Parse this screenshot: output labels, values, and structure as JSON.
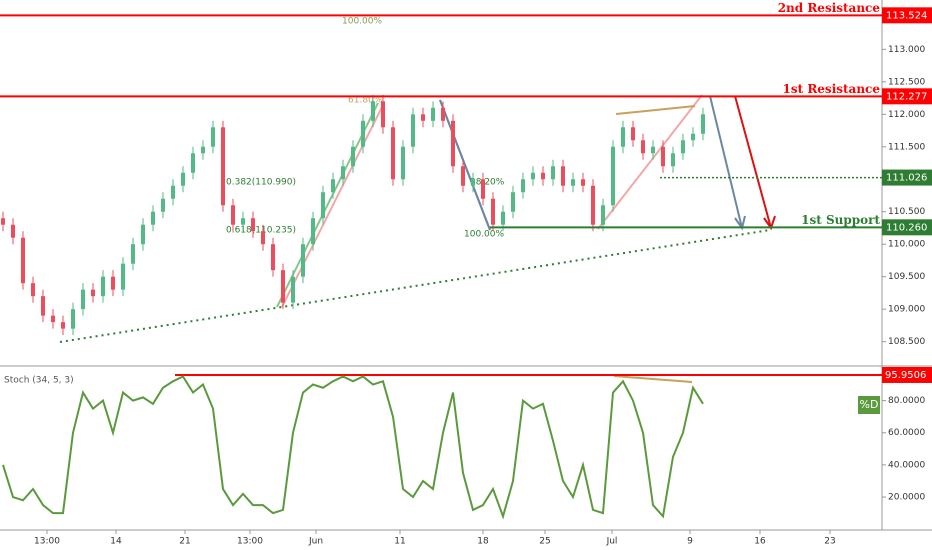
{
  "chart_data": {
    "type": "candlestick",
    "x": [
      0,
      1,
      2,
      3,
      4,
      5,
      6,
      7,
      8,
      9,
      10,
      11,
      12,
      13,
      14,
      15,
      16,
      17,
      18,
      19,
      20,
      21,
      22,
      23,
      24,
      25,
      26,
      27,
      28,
      29,
      30,
      31,
      32,
      33,
      34,
      35,
      36,
      37,
      38,
      39,
      40,
      41,
      42,
      43,
      44,
      45,
      46,
      47,
      48,
      49,
      50,
      51,
      52,
      53,
      54,
      55,
      56,
      57,
      58,
      59,
      60,
      61,
      62,
      63,
      64,
      65,
      66,
      67,
      68,
      69,
      70
    ],
    "open": [
      110.4,
      110.3,
      110.1,
      109.4,
      109.2,
      108.9,
      108.8,
      108.7,
      109.0,
      109.3,
      109.2,
      109.5,
      109.3,
      109.7,
      110.0,
      110.3,
      110.5,
      110.7,
      110.9,
      111.1,
      111.4,
      111.5,
      111.8,
      110.6,
      110.3,
      110.4,
      110.2,
      110.0,
      109.6,
      109.1,
      109.5,
      110.0,
      110.4,
      110.8,
      111.0,
      111.2,
      111.5,
      111.9,
      112.2,
      111.8,
      111.0,
      111.5,
      112.0,
      111.9,
      112.1,
      111.9,
      111.2,
      110.9,
      111.0,
      110.7,
      110.3,
      110.5,
      110.8,
      111.0,
      111.1,
      111.0,
      111.2,
      110.9,
      111.0,
      110.9,
      110.3,
      110.6,
      111.5,
      111.8,
      111.6,
      111.4,
      111.5,
      111.2,
      111.4,
      111.6,
      111.7
    ],
    "high": [
      110.5,
      110.4,
      110.2,
      109.5,
      109.3,
      109.0,
      108.9,
      109.1,
      109.4,
      109.4,
      109.6,
      109.6,
      109.8,
      110.1,
      110.4,
      110.6,
      110.8,
      111.0,
      111.2,
      111.5,
      111.6,
      111.9,
      111.9,
      110.7,
      110.5,
      110.5,
      110.3,
      110.1,
      109.7,
      109.6,
      110.1,
      110.5,
      110.9,
      111.1,
      111.3,
      111.6,
      112.0,
      112.3,
      112.3,
      111.9,
      111.6,
      112.1,
      112.1,
      112.2,
      112.2,
      112.0,
      111.3,
      111.1,
      111.1,
      110.8,
      110.6,
      110.9,
      111.1,
      111.2,
      111.2,
      111.3,
      111.3,
      111.1,
      111.1,
      111.0,
      110.7,
      111.6,
      111.9,
      111.9,
      111.7,
      111.6,
      111.6,
      111.5,
      111.7,
      111.8,
      112.1
    ],
    "low": [
      110.2,
      110.0,
      109.3,
      109.1,
      108.8,
      108.7,
      108.6,
      108.6,
      108.9,
      109.1,
      109.1,
      109.2,
      109.2,
      109.6,
      109.9,
      110.2,
      110.4,
      110.6,
      110.8,
      111.0,
      111.3,
      111.4,
      110.5,
      110.2,
      110.2,
      110.1,
      109.9,
      109.5,
      109.0,
      109.0,
      109.4,
      109.9,
      110.3,
      110.7,
      110.9,
      111.1,
      111.4,
      111.8,
      111.7,
      110.9,
      110.9,
      111.4,
      111.8,
      111.8,
      111.8,
      111.1,
      110.8,
      110.8,
      110.6,
      110.2,
      110.2,
      110.4,
      110.7,
      110.9,
      110.9,
      110.9,
      110.8,
      110.8,
      110.8,
      110.2,
      110.2,
      110.5,
      111.4,
      111.5,
      111.3,
      111.3,
      111.1,
      111.1,
      111.3,
      111.5,
      111.6
    ],
    "close": [
      110.3,
      110.1,
      109.4,
      109.2,
      108.9,
      108.8,
      108.7,
      109.0,
      109.3,
      109.2,
      109.5,
      109.3,
      109.7,
      110.0,
      110.3,
      110.5,
      110.7,
      110.9,
      111.1,
      111.4,
      111.5,
      111.8,
      110.6,
      110.3,
      110.4,
      110.2,
      110.0,
      109.6,
      109.1,
      109.5,
      110.0,
      110.4,
      110.8,
      111.0,
      111.2,
      111.5,
      111.9,
      112.2,
      111.8,
      111.0,
      111.5,
      112.0,
      111.9,
      112.1,
      111.9,
      111.2,
      110.9,
      111.0,
      110.7,
      110.3,
      110.5,
      110.8,
      111.0,
      111.1,
      111.0,
      111.2,
      110.9,
      111.0,
      110.9,
      110.3,
      110.6,
      111.5,
      111.8,
      111.6,
      111.4,
      111.5,
      111.2,
      111.4,
      111.6,
      111.7,
      112.0
    ],
    "up_color": "#53b987",
    "down_color": "#eb4d5c",
    "xlim": [
      -0.3,
      87.9
    ],
    "xticks": [
      {
        "value": 4.4,
        "label": "13:00"
      },
      {
        "value": 11.3,
        "label": "14"
      },
      {
        "value": 18.2,
        "label": "21"
      },
      {
        "value": 24.7,
        "label": "13:00"
      },
      {
        "value": 31.3,
        "label": "Jun"
      },
      {
        "value": 39.7,
        "label": "11"
      },
      {
        "value": 48,
        "label": "18"
      },
      {
        "value": 54.2,
        "label": "25"
      },
      {
        "value": 60.9,
        "label": "Jul"
      },
      {
        "value": 68.7,
        "label": "9"
      },
      {
        "value": 75.7,
        "label": "16"
      },
      {
        "value": 82.7,
        "label": "23"
      }
    ],
    "ylim": [
      108.14,
      113.76
    ],
    "yticks": [
      {
        "value": 113,
        "label": "113.000"
      },
      {
        "value": 112.5,
        "label": "112.500"
      },
      {
        "value": 112,
        "label": "112.000"
      },
      {
        "value": 111.5,
        "label": "111.500"
      },
      {
        "value": 110.5,
        "label": "110.500"
      },
      {
        "value": 110,
        "label": "110.000"
      },
      {
        "value": 109.5,
        "label": "109.500"
      },
      {
        "value": 109,
        "label": "109.000"
      },
      {
        "value": 108.5,
        "label": "108.500"
      }
    ],
    "levels": [
      {
        "name": "2nd Resistance",
        "value": 113.524,
        "label": "113.524",
        "color": "#ff0000"
      },
      {
        "name": "1st Resistance",
        "value": 112.277,
        "label": "112.277",
        "color": "#ff0000"
      },
      {
        "value": 111.026,
        "label": "111.026",
        "color": "#2e7d32"
      },
      {
        "name": "1st Support",
        "value": 110.26,
        "label": "110.260",
        "color": "#2e7d32"
      }
    ],
    "annotations": [
      "100.00%",
      "61.80%",
      "0.382(110.990)",
      "0.618(110.235)",
      "100.00%",
      "38.20%"
    ],
    "stoch": {
      "name": "Stoch (34, 5, 3)",
      "legend": "%D",
      "color": "#5b9a3c",
      "values": [
        40,
        20,
        18,
        25,
        15,
        10,
        10,
        60,
        85,
        75,
        80,
        60,
        85,
        80,
        82,
        78,
        88,
        92,
        95,
        85,
        90,
        75,
        25,
        15,
        22,
        15,
        15,
        10,
        12,
        60,
        85,
        90,
        88,
        92,
        95,
        92,
        95,
        90,
        92,
        70,
        25,
        20,
        30,
        25,
        60,
        85,
        35,
        12,
        15,
        25,
        8,
        30,
        80,
        75,
        78,
        55,
        30,
        20,
        40,
        12,
        10,
        85,
        92,
        80,
        60,
        15,
        8,
        45,
        60,
        88,
        78
      ],
      "ylim": [
        -0.5,
        100.9
      ],
      "yticks": [
        {
          "value": 80,
          "label": "80.0000"
        },
        {
          "value": 60,
          "label": "60.0000"
        },
        {
          "value": 40,
          "label": "40.0000"
        },
        {
          "value": 20,
          "label": "20.0000"
        }
      ],
      "level": {
        "value": 95.9506,
        "label": "95.9506",
        "color": "#ff0000"
      }
    }
  }
}
